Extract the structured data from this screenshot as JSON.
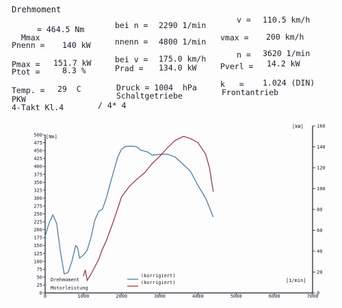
{
  "header": {
    "title": "Drehmoment",
    "fields": [
      {
        "name": "mmax",
        "label": "Mmax",
        "value": "464.5",
        "unit": "Nm"
      },
      {
        "name": "bei-n",
        "label": "bei n",
        "value": "2290",
        "unit": "1/min"
      },
      {
        "name": "v",
        "label": "v",
        "value": "110.5",
        "unit": "km/h"
      },
      {
        "name": "pnenn",
        "label": "Pnenn",
        "value": "140",
        "unit": "kW"
      },
      {
        "name": "nnenn",
        "label": "nnenn",
        "value": "4800",
        "unit": "1/min"
      },
      {
        "name": "vmax",
        "label": "vmax",
        "value": "200",
        "unit": "km/h"
      },
      {
        "name": "pmax",
        "label": "Pmax",
        "value": "151.7",
        "unit": "kW"
      },
      {
        "name": "bei-v",
        "label": "bei v",
        "value": "175.0",
        "unit": "km/h"
      },
      {
        "name": "n",
        "label": "n",
        "value": "3620",
        "unit": "1/min"
      },
      {
        "name": "ptot",
        "label": "Ptot",
        "value": "8.3",
        "unit": "%"
      },
      {
        "name": "prad",
        "label": "Prad",
        "value": "134.0",
        "unit": "kW"
      },
      {
        "name": "pverl",
        "label": "Pverl",
        "value": "14.2",
        "unit": "kW"
      },
      {
        "name": "temp",
        "label": "Temp.",
        "value": "29",
        "unit": "C"
      },
      {
        "name": "druck",
        "label": "Druck",
        "value": "1004",
        "unit": "hPa"
      },
      {
        "name": "k",
        "label": "k",
        "value": "1.024",
        "unit": "(DIN)"
      }
    ],
    "vehicle_type": "PKW",
    "engine": "4-Takt Kl.4",
    "cylinders": "/ 4* 4",
    "transmission": "Schaltgetriebe",
    "drive": "Frontantrieb"
  },
  "colors": {
    "torque": "#3a78aa",
    "power": "#a8283a",
    "axis": "#1c1c30"
  },
  "chart_data": {
    "type": "line",
    "xlabel": "[1/min]",
    "y_left_label": "[Nm]",
    "y_right_label": "[kW]",
    "xlim": [
      0,
      7000
    ],
    "y_left_lim": [
      0,
      500
    ],
    "y_right_lim": [
      0,
      160
    ],
    "x_ticks": [
      "0",
      "1000",
      "2000",
      "3000",
      "4000",
      "5000",
      "6000",
      "7000"
    ],
    "y_left_ticks": [
      "0",
      "25",
      "50",
      "75",
      "100",
      "125",
      "150",
      "175",
      "200",
      "225",
      "250",
      "275",
      "300",
      "325",
      "350",
      "375",
      "400",
      "425",
      "450",
      "475",
      "500"
    ],
    "y_right_ticks": [
      "0",
      "20",
      "40",
      "60",
      "80",
      "100",
      "120",
      "140",
      "160"
    ],
    "legend": [
      {
        "label": "Drehmoment",
        "suffix": "(korrigiert)"
      },
      {
        "label": "Motorleistung",
        "suffix": "(korrigiert)"
      }
    ],
    "series": [
      {
        "name": "Drehmoment",
        "axis": "left",
        "x": [
          0,
          100,
          200,
          300,
          400,
          500,
          600,
          700,
          800,
          850,
          900,
          1000,
          1100,
          1200,
          1300,
          1400,
          1500,
          1600,
          1700,
          1800,
          1900,
          2000,
          2100,
          2200,
          2300,
          2400,
          2500,
          2700,
          2800,
          3000,
          3200,
          3400,
          3600,
          3800,
          4000,
          4200,
          4400
        ],
        "values": [
          180,
          220,
          247,
          220,
          130,
          60,
          65,
          100,
          150,
          143,
          110,
          120,
          135,
          175,
          230,
          258,
          265,
          300,
          345,
          387,
          430,
          455,
          463,
          464,
          464,
          462,
          452,
          445,
          436,
          438,
          439,
          430,
          408,
          385,
          340,
          300,
          240
        ]
      },
      {
        "name": "Motorleistung",
        "axis": "right",
        "x": [
          1000,
          1050,
          1100,
          1200,
          1300,
          1400,
          1500,
          1600,
          1700,
          1800,
          2000,
          2200,
          2400,
          2600,
          2800,
          3000,
          3200,
          3400,
          3620,
          3800,
          4000,
          4200,
          4300,
          4400
        ],
        "values": [
          16,
          22,
          12,
          18,
          25,
          32,
          42,
          50,
          60,
          70,
          92,
          102,
          109,
          115,
          124,
          131,
          139,
          146,
          150,
          148,
          144,
          133,
          120,
          97
        ]
      }
    ]
  }
}
